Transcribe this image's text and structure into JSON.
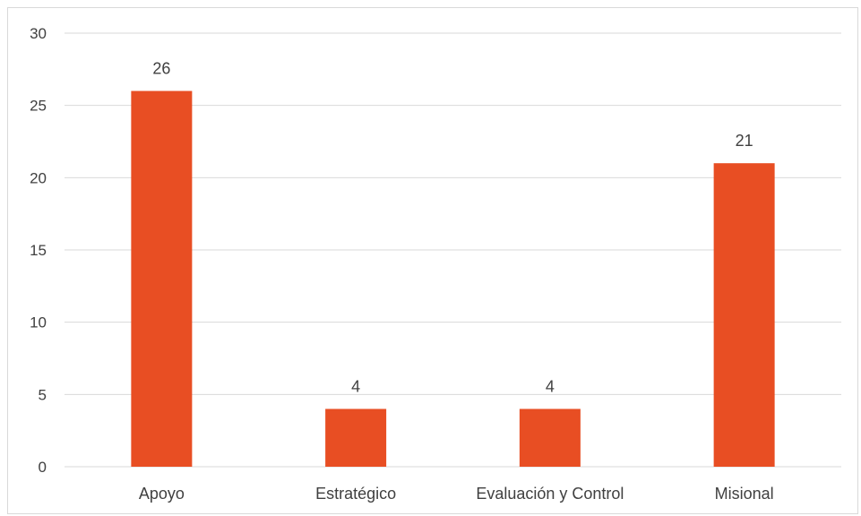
{
  "chart_data": {
    "type": "bar",
    "title": "",
    "xlabel": "",
    "ylabel": "",
    "categories": [
      "Apoyo",
      "Estratégico",
      "Evaluación y Control",
      "Misional"
    ],
    "values": [
      26,
      4,
      4,
      21
    ],
    "ylim": [
      0,
      30
    ],
    "yticks": [
      0,
      5,
      10,
      15,
      20,
      25,
      30
    ],
    "grid": true,
    "legend": "none",
    "data_labels": true,
    "colors": {
      "bar": "#E84E23",
      "grid": "#d9d9d9",
      "text": "#404040",
      "border": "#d9d9d9"
    }
  }
}
